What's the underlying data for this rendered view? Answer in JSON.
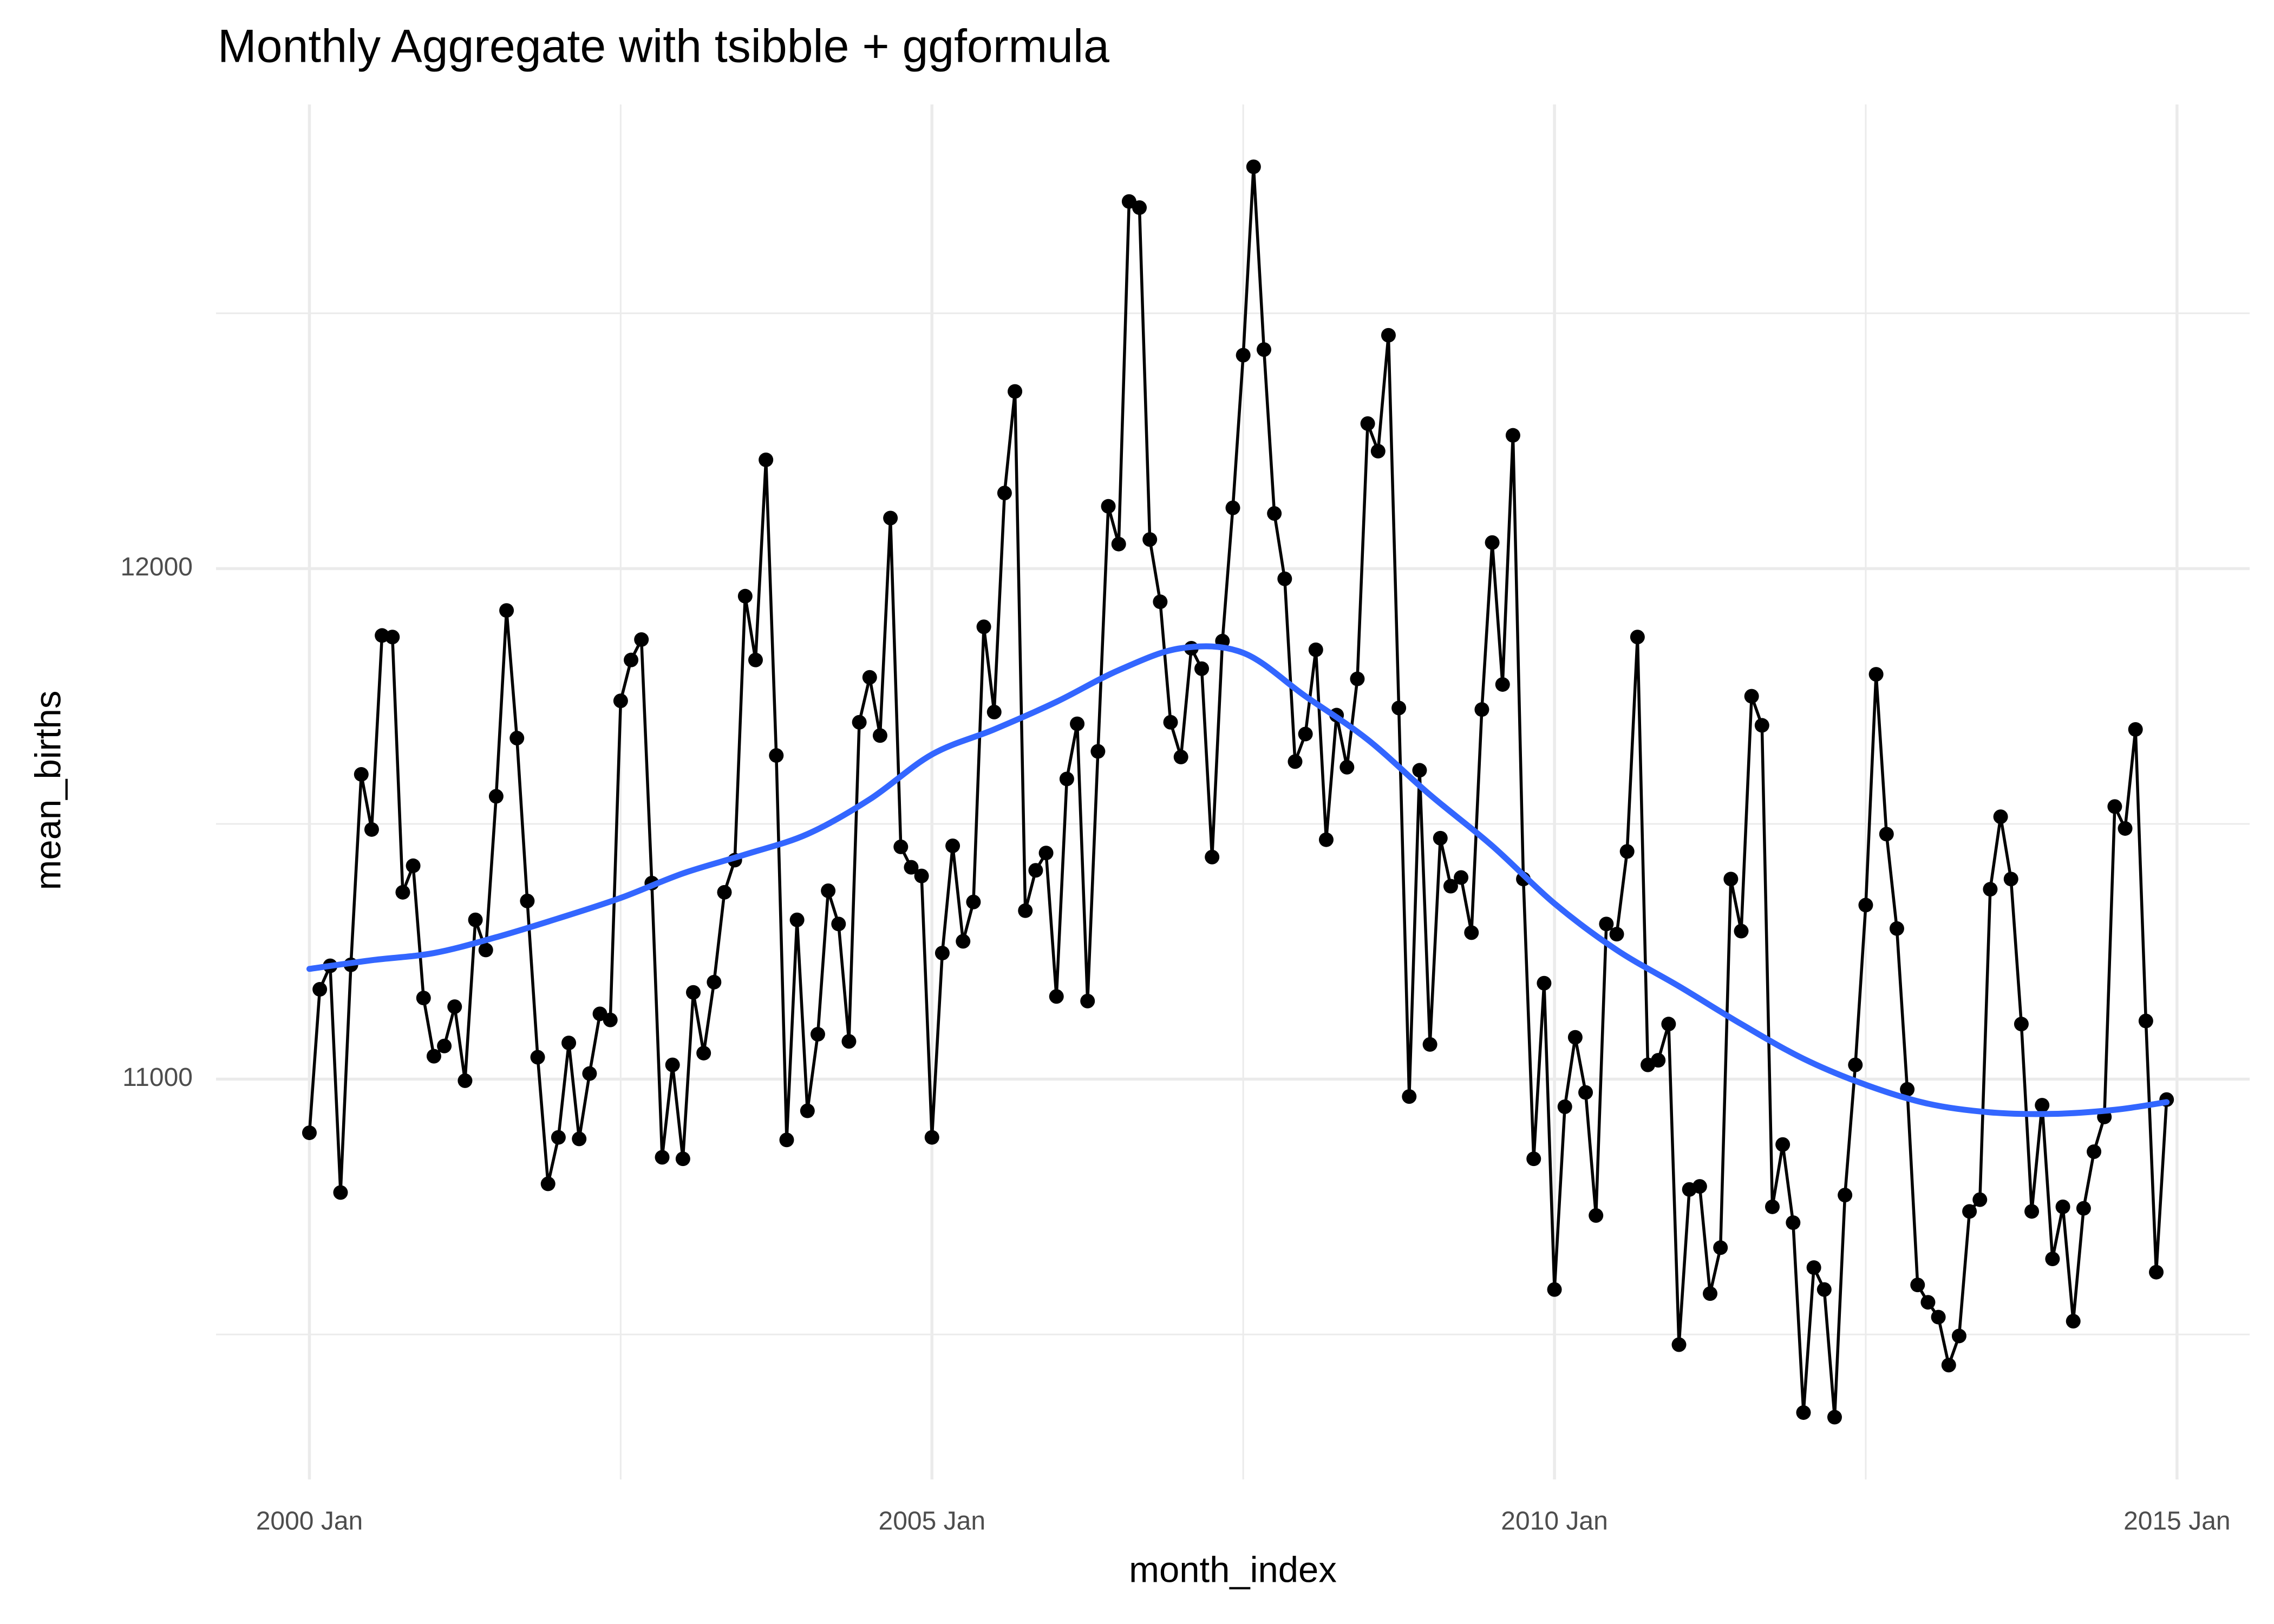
{
  "chart_data": {
    "type": "line",
    "title": "Monthly Aggregate with tsibble + ggformula",
    "xlabel": "month_index",
    "ylabel": "mean_births",
    "x": [
      "2000 Jan",
      "2000 Feb",
      "2000 Mar",
      "2000 Apr",
      "2000 May",
      "2000 Jun",
      "2000 Jul",
      "2000 Aug",
      "2000 Sep",
      "2000 Oct",
      "2000 Nov",
      "2000 Dec",
      "2001 Jan",
      "2001 Feb",
      "2001 Mar",
      "2001 Apr",
      "2001 May",
      "2001 Jun",
      "2001 Jul",
      "2001 Aug",
      "2001 Sep",
      "2001 Oct",
      "2001 Nov",
      "2001 Dec",
      "2002 Jan",
      "2002 Feb",
      "2002 Mar",
      "2002 Apr",
      "2002 May",
      "2002 Jun",
      "2002 Jul",
      "2002 Aug",
      "2002 Sep",
      "2002 Oct",
      "2002 Nov",
      "2002 Dec",
      "2003 Jan",
      "2003 Feb",
      "2003 Mar",
      "2003 Apr",
      "2003 May",
      "2003 Jun",
      "2003 Jul",
      "2003 Aug",
      "2003 Sep",
      "2003 Oct",
      "2003 Nov",
      "2003 Dec",
      "2004 Jan",
      "2004 Feb",
      "2004 Mar",
      "2004 Apr",
      "2004 May",
      "2004 Jun",
      "2004 Jul",
      "2004 Aug",
      "2004 Sep",
      "2004 Oct",
      "2004 Nov",
      "2004 Dec",
      "2005 Jan",
      "2005 Feb",
      "2005 Mar",
      "2005 Apr",
      "2005 May",
      "2005 Jun",
      "2005 Jul",
      "2005 Aug",
      "2005 Sep",
      "2005 Oct",
      "2005 Nov",
      "2005 Dec",
      "2006 Jan",
      "2006 Feb",
      "2006 Mar",
      "2006 Apr",
      "2006 May",
      "2006 Jun",
      "2006 Jul",
      "2006 Aug",
      "2006 Sep",
      "2006 Oct",
      "2006 Nov",
      "2006 Dec",
      "2007 Jan",
      "2007 Feb",
      "2007 Mar",
      "2007 Apr",
      "2007 May",
      "2007 Jun",
      "2007 Jul",
      "2007 Aug",
      "2007 Sep",
      "2007 Oct",
      "2007 Nov",
      "2007 Dec",
      "2008 Jan",
      "2008 Feb",
      "2008 Mar",
      "2008 Apr",
      "2008 May",
      "2008 Jun",
      "2008 Jul",
      "2008 Aug",
      "2008 Sep",
      "2008 Oct",
      "2008 Nov",
      "2008 Dec",
      "2009 Jan",
      "2009 Feb",
      "2009 Mar",
      "2009 Apr",
      "2009 May",
      "2009 Jun",
      "2009 Jul",
      "2009 Aug",
      "2009 Sep",
      "2009 Oct",
      "2009 Nov",
      "2009 Dec",
      "2010 Jan",
      "2010 Feb",
      "2010 Mar",
      "2010 Apr",
      "2010 May",
      "2010 Jun",
      "2010 Jul",
      "2010 Aug",
      "2010 Sep",
      "2010 Oct",
      "2010 Nov",
      "2010 Dec",
      "2011 Jan",
      "2011 Feb",
      "2011 Mar",
      "2011 Apr",
      "2011 May",
      "2011 Jun",
      "2011 Jul",
      "2011 Aug",
      "2011 Sep",
      "2011 Oct",
      "2011 Nov",
      "2011 Dec",
      "2012 Jan",
      "2012 Feb",
      "2012 Mar",
      "2012 Apr",
      "2012 May",
      "2012 Jun",
      "2012 Jul",
      "2012 Aug",
      "2012 Sep",
      "2012 Oct",
      "2012 Nov",
      "2012 Dec",
      "2013 Jan",
      "2013 Feb",
      "2013 Mar",
      "2013 Apr",
      "2013 May",
      "2013 Jun",
      "2013 Jul",
      "2013 Aug",
      "2013 Sep",
      "2013 Oct",
      "2013 Nov",
      "2013 Dec",
      "2014 Jan",
      "2014 Feb",
      "2014 Mar",
      "2014 Apr",
      "2014 May",
      "2014 Jun",
      "2014 Jul",
      "2014 Aug",
      "2014 Sep",
      "2014 Oct",
      "2014 Nov",
      "2014 Dec"
    ],
    "values": [
      10895,
      11176,
      11222,
      10778,
      11224,
      11597,
      11489,
      11869,
      11866,
      11366,
      11418,
      11159,
      11045,
      11065,
      11142,
      10997,
      11312,
      11253,
      11554,
      11918,
      11668,
      11349,
      11043,
      10795,
      10886,
      11071,
      10883,
      11011,
      11128,
      11116,
      11741,
      11821,
      11861,
      11384,
      10847,
      11028,
      10844,
      11170,
      11051,
      11190,
      11366,
      11429,
      11946,
      11821,
      12213,
      11634,
      10881,
      11312,
      10938,
      11088,
      11369,
      11304,
      11074,
      11699,
      11787,
      11673,
      12099,
      11455,
      11415,
      11398,
      10886,
      11247,
      11457,
      11270,
      11347,
      11886,
      11719,
      12148,
      12347,
      11330,
      11409,
      11443,
      11162,
      11588,
      11696,
      11153,
      11642,
      12122,
      12048,
      12719,
      12707,
      12057,
      11935,
      11699,
      11631,
      11844,
      11804,
      11435,
      11858,
      12119,
      12418,
      12787,
      12429,
      12108,
      11980,
      11622,
      11676,
      11841,
      11469,
      11713,
      11611,
      11784,
      12284,
      12230,
      12457,
      11727,
      10966,
      11605,
      11068,
      11472,
      11378,
      11395,
      11287,
      11724,
      12051,
      11773,
      12261,
      11392,
      10844,
      11188,
      10588,
      10946,
      11082,
      10974,
      10733,
      11304,
      11284,
      11446,
      11866,
      11028,
      11037,
      11108,
      10480,
      10784,
      10790,
      10580,
      10670,
      11392,
      11290,
      11750,
      11693,
      10750,
      10872,
      10719,
      10347,
      10631,
      10588,
      10338,
      10773,
      11028,
      11341,
      11793,
      11480,
      11295,
      10980,
      10597,
      10563,
      10534,
      10440,
      10497,
      10741,
      10764,
      11372,
      11514,
      11392,
      11108,
      10741,
      10949,
      10648,
      10750,
      10526,
      10747,
      10858,
      10926,
      11534,
      11491,
      11685,
      11114,
      10622,
      10960
    ],
    "color": "#000000",
    "smooth": {
      "color": "#3366ff",
      "x": [
        "2000 Jan",
        "2000 Jul",
        "2001 Jan",
        "2001 Jul",
        "2002 Jan",
        "2002 Jul",
        "2003 Jan",
        "2003 Jul",
        "2004 Jan",
        "2004 Jul",
        "2005 Jan",
        "2005 Jul",
        "2006 Jan",
        "2006 Jul",
        "2007 Jan",
        "2007 Jul",
        "2008 Jan",
        "2008 Jul",
        "2009 Jan",
        "2009 Jul",
        "2010 Jan",
        "2010 Jul",
        "2011 Jan",
        "2011 Jul",
        "2012 Jan",
        "2012 Jul",
        "2013 Jan",
        "2013 Jul",
        "2014 Jan",
        "2014 Jul",
        "2014 Dec"
      ],
      "values": [
        11216,
        11233,
        11247,
        11278,
        11315,
        11355,
        11403,
        11440,
        11480,
        11548,
        11636,
        11685,
        11739,
        11801,
        11844,
        11835,
        11750,
        11665,
        11557,
        11457,
        11344,
        11253,
        11182,
        11108,
        11040,
        10989,
        10952,
        10935,
        10932,
        10940,
        10955
      ]
    },
    "xlim": [
      "1999 Apr",
      "2015 Aug"
    ],
    "xticks": [
      "2000 Jan",
      "2005 Jan",
      "2010 Jan",
      "2015 Jan"
    ],
    "x_minor_ticks": [
      "2002 Jul",
      "2007 Jul",
      "2012 Jul"
    ],
    "ylim": [
      10216,
      12909
    ],
    "yticks": [
      11000,
      12000
    ],
    "y_minor_ticks": [
      10500,
      11500,
      12500
    ],
    "grid": true
  }
}
